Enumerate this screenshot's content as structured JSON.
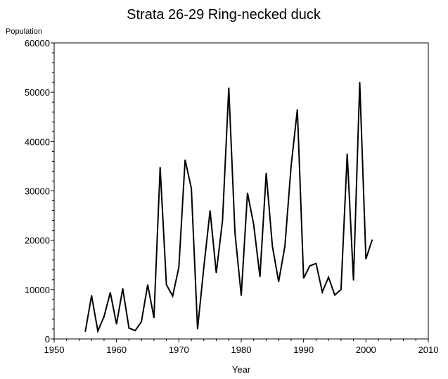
{
  "chart_data": {
    "type": "line",
    "title": "Strata 26-29   Ring-necked duck",
    "xlabel": "Year",
    "ylabel": "Population",
    "xlim": [
      1950,
      2010
    ],
    "ylim": [
      0,
      60000
    ],
    "xticks": [
      1950,
      1960,
      1970,
      1980,
      1990,
      2000,
      2010
    ],
    "yticks": [
      0,
      10000,
      20000,
      30000,
      40000,
      50000,
      60000
    ],
    "x_tick_labels": [
      "1950",
      "1960",
      "1970",
      "1980",
      "1990",
      "2000",
      "2010"
    ],
    "y_tick_labels": [
      "0",
      "10000",
      "20000",
      "30000",
      "40000",
      "50000",
      "60000"
    ],
    "grid": false,
    "series": [
      {
        "x": [
          1955,
          1956,
          1957,
          1958,
          1959,
          1960,
          1961,
          1962,
          1963,
          1964,
          1965,
          1966,
          1967,
          1968,
          1969,
          1970,
          1971,
          1972,
          1973,
          1974,
          1975,
          1976,
          1977,
          1978,
          1979,
          1980,
          1981,
          1982,
          1983,
          1984,
          1985,
          1986,
          1987,
          1988,
          1989,
          1990,
          1991,
          1992,
          1993,
          1994,
          1995,
          1996,
          1997,
          1998,
          1999,
          2000,
          2001
        ],
        "values": [
          1500,
          8800,
          1600,
          4500,
          9400,
          3000,
          10200,
          2200,
          1700,
          3500,
          11000,
          4300,
          34800,
          11000,
          8700,
          14500,
          36300,
          30500,
          2000,
          14500,
          26000,
          13400,
          24000,
          50900,
          21500,
          8800,
          29600,
          23200,
          12600,
          33600,
          18800,
          11600,
          18800,
          35000,
          46500,
          12300,
          14800,
          15300,
          9500,
          12500,
          8900,
          10000,
          37500,
          11900,
          52000,
          16200,
          20100
        ],
        "color": "#000000"
      }
    ]
  }
}
